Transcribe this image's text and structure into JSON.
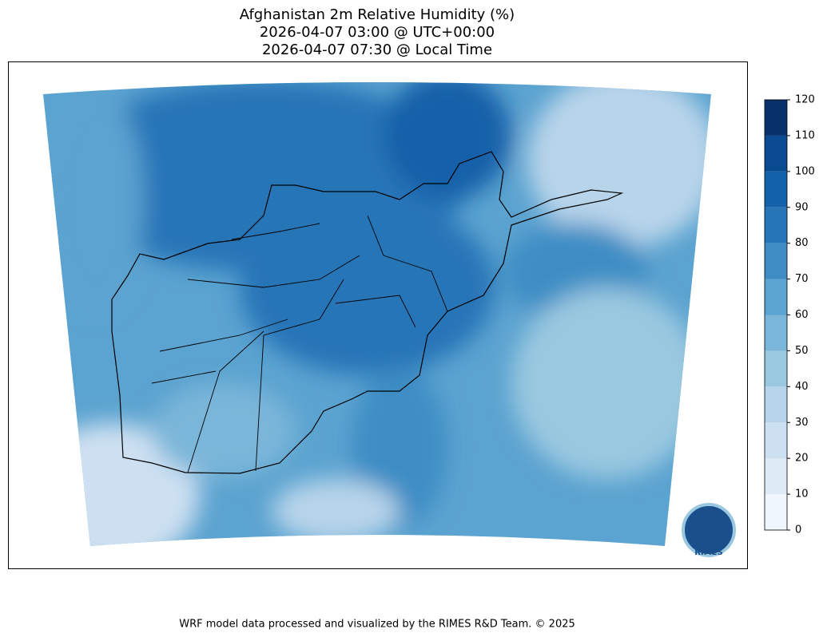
{
  "header": {
    "title_lines": [
      "Afghanistan 2m Relative Humidity (%)",
      "2026-04-07 03:00 @ UTC+00:00",
      "2026-04-07 07:30 @ Local Time"
    ]
  },
  "colorbar": {
    "ticks": [
      0,
      10,
      20,
      30,
      40,
      50,
      60,
      70,
      80,
      90,
      100,
      110,
      120
    ],
    "colors": [
      "#eff6fd",
      "#deebf7",
      "#cde0f1",
      "#b7d4ea",
      "#9ac8e0",
      "#7ab6d9",
      "#5ba3d0",
      "#3d8dc4",
      "#2575b7",
      "#1361a9",
      "#0a4a90",
      "#08306b"
    ]
  },
  "logo": {
    "text": "RIMES"
  },
  "footer": {
    "text": "WRF model data processed and visualized by the RIMES R&D Team. © 2025"
  }
}
